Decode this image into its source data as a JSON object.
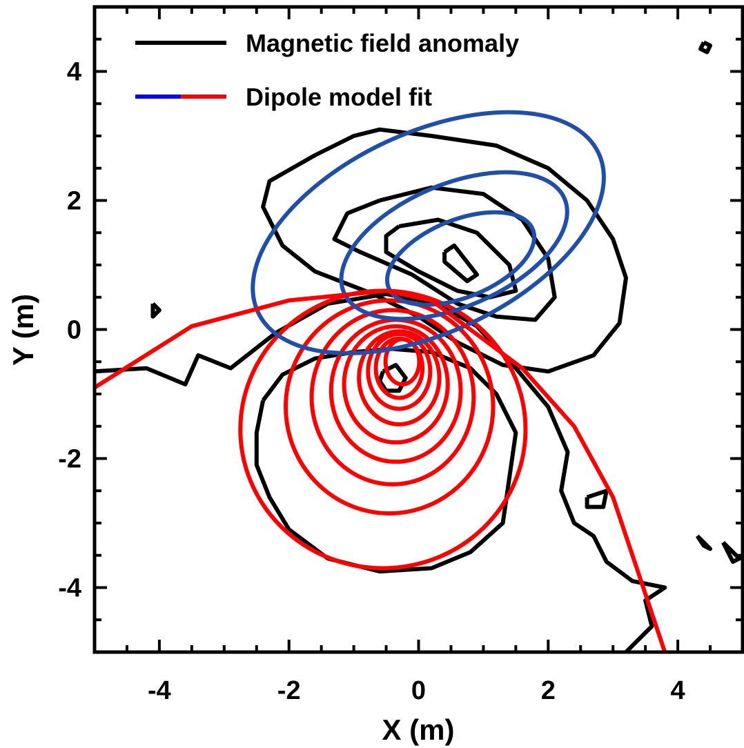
{
  "chart_data": {
    "type": "contour",
    "xlabel": "X (m)",
    "ylabel": "Y (m)",
    "xlim": [
      -5,
      5
    ],
    "ylim": [
      -5,
      5
    ],
    "xticks": [
      -4,
      -2,
      0,
      2,
      4
    ],
    "yticks": [
      -4,
      -2,
      0,
      2,
      4
    ],
    "xtick_labels": [
      "-4",
      "-2",
      "0",
      "2",
      "4"
    ],
    "ytick_labels": [
      "-4",
      "-2",
      "0",
      "2",
      "4"
    ],
    "grid": false,
    "legend_position": "top-left",
    "legend": [
      {
        "label": "Magnetic field anomaly",
        "colors": [
          "#000000"
        ]
      },
      {
        "label": "Dipole model fit",
        "colors": [
          "#0000ff",
          "#ff0000"
        ]
      }
    ],
    "series": [
      {
        "name": "Magnetic field anomaly",
        "color": "#000000",
        "description_points_in_data_units": true,
        "contours": [
          [
            [
              -1.6,
              2.7
            ],
            [
              -1.0,
              3.0
            ],
            [
              -0.6,
              3.1
            ],
            [
              0.2,
              3.0
            ],
            [
              1.2,
              2.85
            ],
            [
              2.0,
              2.5
            ],
            [
              2.6,
              2.0
            ],
            [
              3.0,
              1.4
            ],
            [
              3.2,
              0.8
            ],
            [
              3.1,
              0.1
            ],
            [
              2.7,
              -0.4
            ],
            [
              2.0,
              -0.65
            ],
            [
              1.3,
              -0.55
            ],
            [
              0.6,
              -0.2
            ],
            [
              0.0,
              0.2
            ],
            [
              -0.7,
              0.55
            ],
            [
              -1.6,
              0.9
            ],
            [
              -2.1,
              1.3
            ],
            [
              -2.4,
              1.9
            ],
            [
              -2.3,
              2.3
            ],
            [
              -1.6,
              2.7
            ]
          ],
          [
            [
              -0.6,
              2.0
            ],
            [
              0.2,
              2.2
            ],
            [
              1.0,
              2.1
            ],
            [
              1.6,
              1.7
            ],
            [
              2.0,
              1.1
            ],
            [
              2.1,
              0.5
            ],
            [
              1.8,
              0.15
            ],
            [
              1.2,
              0.2
            ],
            [
              0.6,
              0.4
            ],
            [
              -0.1,
              0.85
            ],
            [
              -0.9,
              1.2
            ],
            [
              -1.3,
              1.4
            ],
            [
              -1.1,
              1.8
            ],
            [
              -0.6,
              2.0
            ]
          ],
          [
            [
              -0.3,
              1.6
            ],
            [
              0.3,
              1.7
            ],
            [
              0.9,
              1.5
            ],
            [
              1.4,
              1.0
            ],
            [
              1.5,
              0.6
            ],
            [
              1.1,
              0.5
            ],
            [
              0.6,
              0.6
            ],
            [
              0.0,
              0.9
            ],
            [
              -0.5,
              1.2
            ],
            [
              -0.5,
              1.45
            ],
            [
              -0.3,
              1.6
            ]
          ],
          [
            [
              0.4,
              1.2
            ],
            [
              0.55,
              1.3
            ],
            [
              0.9,
              0.85
            ],
            [
              0.75,
              0.75
            ],
            [
              0.4,
              1.05
            ],
            [
              0.4,
              1.2
            ]
          ],
          [
            [
              -5.0,
              -0.65
            ],
            [
              -4.2,
              -0.6
            ],
            [
              -3.6,
              -0.85
            ],
            [
              -3.4,
              -0.4
            ],
            [
              -2.9,
              -0.6
            ],
            [
              -2.2,
              -0.05
            ],
            [
              -1.4,
              0.4
            ],
            [
              -0.5,
              0.55
            ],
            [
              0.3,
              0.4
            ],
            [
              0.9,
              0.05
            ],
            [
              1.5,
              -0.6
            ],
            [
              2.0,
              -1.2
            ],
            [
              2.3,
              -1.9
            ],
            [
              2.2,
              -2.5
            ],
            [
              2.4,
              -3.0
            ],
            [
              2.7,
              -3.2
            ],
            [
              2.9,
              -3.6
            ],
            [
              3.3,
              -3.9
            ],
            [
              3.8,
              -4.0
            ],
            [
              3.5,
              -4.2
            ],
            [
              3.6,
              -4.6
            ],
            [
              3.4,
              -4.8
            ],
            [
              3.2,
              -5.0
            ]
          ],
          [
            [
              -2.4,
              -1.1
            ],
            [
              -2.1,
              -0.7
            ],
            [
              -1.6,
              -0.45
            ],
            [
              -1.0,
              -0.35
            ],
            [
              -0.4,
              -0.3
            ],
            [
              0.2,
              -0.35
            ],
            [
              0.8,
              -0.6
            ],
            [
              1.2,
              -1.0
            ],
            [
              1.5,
              -1.6
            ],
            [
              1.4,
              -2.3
            ],
            [
              1.3,
              -3.0
            ],
            [
              0.8,
              -3.45
            ],
            [
              0.2,
              -3.7
            ],
            [
              -0.6,
              -3.75
            ],
            [
              -1.4,
              -3.55
            ],
            [
              -2.0,
              -3.1
            ],
            [
              -2.3,
              -2.6
            ],
            [
              -2.5,
              -2.1
            ],
            [
              -2.5,
              -1.6
            ],
            [
              -2.4,
              -1.1
            ]
          ],
          [
            [
              -0.55,
              -0.65
            ],
            [
              -0.35,
              -0.55
            ],
            [
              -0.2,
              -0.75
            ],
            [
              -0.3,
              -0.95
            ],
            [
              -0.5,
              -0.95
            ],
            [
              -0.6,
              -0.8
            ],
            [
              -0.55,
              -0.65
            ]
          ],
          [
            [
              2.6,
              -2.6
            ],
            [
              2.9,
              -2.5
            ],
            [
              2.85,
              -2.75
            ],
            [
              2.6,
              -2.75
            ],
            [
              2.6,
              -2.6
            ]
          ],
          [
            [
              4.4,
              4.45
            ],
            [
              4.5,
              4.4
            ],
            [
              4.45,
              4.3
            ],
            [
              4.35,
              4.35
            ],
            [
              4.4,
              4.45
            ]
          ],
          [
            [
              -4.1,
              0.4
            ],
            [
              -4.0,
              0.3
            ],
            [
              -4.1,
              0.2
            ],
            [
              -4.1,
              0.4
            ]
          ],
          [
            [
              4.3,
              -3.2
            ],
            [
              4.5,
              -3.4
            ],
            [
              4.4,
              -3.35
            ],
            [
              4.3,
              -3.2
            ]
          ],
          [
            [
              4.7,
              -3.3
            ],
            [
              4.95,
              -3.55
            ],
            [
              4.85,
              -3.6
            ],
            [
              4.7,
              -3.3
            ]
          ]
        ]
      },
      {
        "name": "Dipole model fit",
        "description": "blue contours (positive lobe, center ~ (0.3, 1.1)) and red contours (negative lobe, center ~ (-0.35, -0.75))",
        "blue_contours": [
          {
            "cx": 0.15,
            "cy": 1.5,
            "rx": 2.9,
            "ry": 1.55,
            "rot": -25
          },
          {
            "cx": 0.55,
            "cy": 1.3,
            "rx": 1.85,
            "ry": 0.95,
            "rot": -23
          },
          {
            "cx": 0.65,
            "cy": 1.1,
            "rx": 1.2,
            "ry": 0.6,
            "rot": -22
          }
        ],
        "red_outer_curve": [
          [
            -5.0,
            -0.9
          ],
          [
            -3.5,
            0.05
          ],
          [
            -2.0,
            0.45
          ],
          [
            -0.5,
            0.6
          ],
          [
            0.2,
            0.45
          ],
          [
            0.8,
            0.0
          ],
          [
            1.6,
            -0.6
          ],
          [
            2.4,
            -1.5
          ],
          [
            3.0,
            -2.6
          ],
          [
            3.4,
            -3.8
          ],
          [
            3.8,
            -5.0
          ]
        ],
        "red_contours": [
          {
            "cx": -0.55,
            "cy": -1.55,
            "rx": 2.2,
            "ry": 2.15
          },
          {
            "cx": -0.45,
            "cy": -1.2,
            "rx": 1.6,
            "ry": 1.65
          },
          {
            "cx": -0.4,
            "cy": -1.05,
            "rx": 1.25,
            "ry": 1.35
          },
          {
            "cx": -0.35,
            "cy": -0.95,
            "rx": 1.0,
            "ry": 1.1
          },
          {
            "cx": -0.35,
            "cy": -0.85,
            "rx": 0.8,
            "ry": 0.9
          },
          {
            "cx": -0.3,
            "cy": -0.75,
            "rx": 0.62,
            "ry": 0.72
          },
          {
            "cx": -0.3,
            "cy": -0.65,
            "rx": 0.48,
            "ry": 0.58
          },
          {
            "cx": -0.3,
            "cy": -0.6,
            "rx": 0.36,
            "ry": 0.46
          },
          {
            "cx": -0.25,
            "cy": -0.5,
            "rx": 0.26,
            "ry": 0.35
          }
        ]
      }
    ]
  }
}
